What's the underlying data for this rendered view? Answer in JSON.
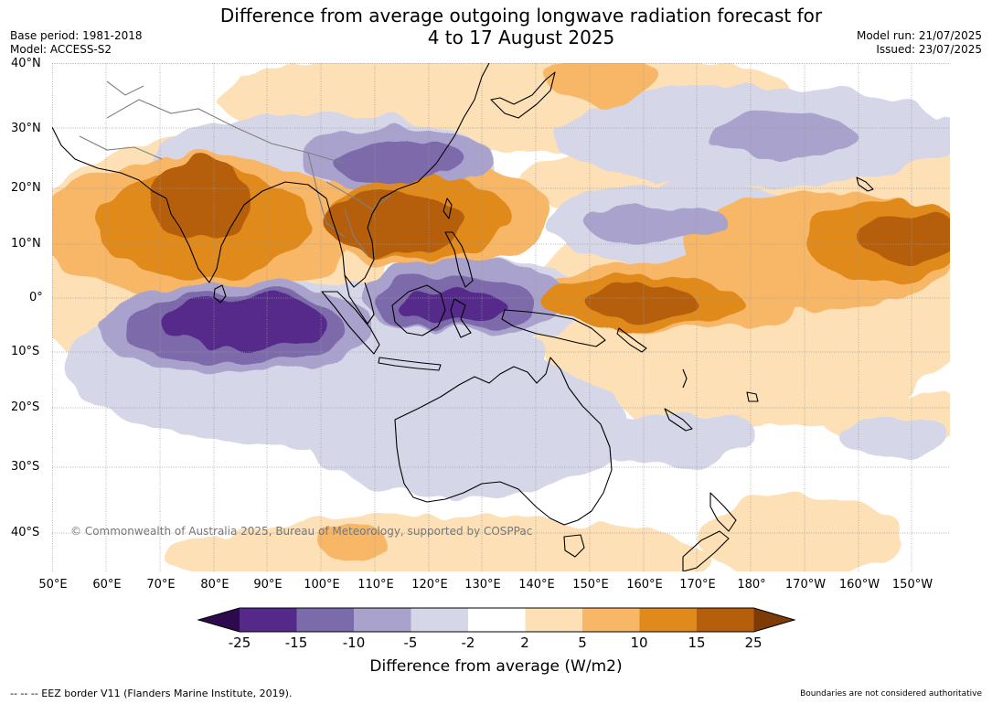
{
  "title": {
    "line1": "Difference from average outgoing longwave radiation forecast for",
    "line2": "4 to 17 August 2025"
  },
  "meta": {
    "base_period": "Base period: 1981-2018",
    "model": "Model: ACCESS-S2",
    "model_run": "Model run: 21/07/2025",
    "issued": "Issued: 23/07/2025"
  },
  "map": {
    "lat_labels": [
      "40°N",
      "30°N",
      "20°N",
      "10°N",
      "0°",
      "10°S",
      "20°S",
      "30°S",
      "40°S"
    ],
    "lon_labels": [
      "50°E",
      "60°E",
      "70°E",
      "80°E",
      "90°E",
      "100°E",
      "110°E",
      "120°E",
      "130°E",
      "140°E",
      "150°E",
      "160°E",
      "170°E",
      "180°",
      "170°W",
      "160°W",
      "150°W"
    ],
    "copyright": "© Commonwealth of Australia 2025, Bureau of Meteorology, supported by COSPPac",
    "colors": {
      "neg_25_plus": "#2d0a4e",
      "neg_15_25": "#55298a",
      "neg_10_15": "#7b6bab",
      "neg_5_10": "#a9a2cc",
      "neg_2_5": "#d6d6e9",
      "neutral": "#ffffff",
      "pos_2_5": "#fde0b5",
      "pos_5_10": "#f8b766",
      "pos_10_15": "#e08a1e",
      "pos_15_25": "#b55e0b",
      "pos_25_plus": "#7d3b08",
      "land_outline": "#000000",
      "border": "#808080",
      "grid": "#9a9a9a"
    }
  },
  "colorbar": {
    "ticks": [
      "-25",
      "-15",
      "-10",
      "-5",
      "-2",
      "2",
      "5",
      "10",
      "15",
      "25"
    ],
    "label": "Difference from average (W/m2)"
  },
  "footer": {
    "eez": "--  --  -- EEZ border V11 (Flanders Marine Institute, 2019).",
    "boundaries": "Boundaries are not considered authoritative"
  }
}
